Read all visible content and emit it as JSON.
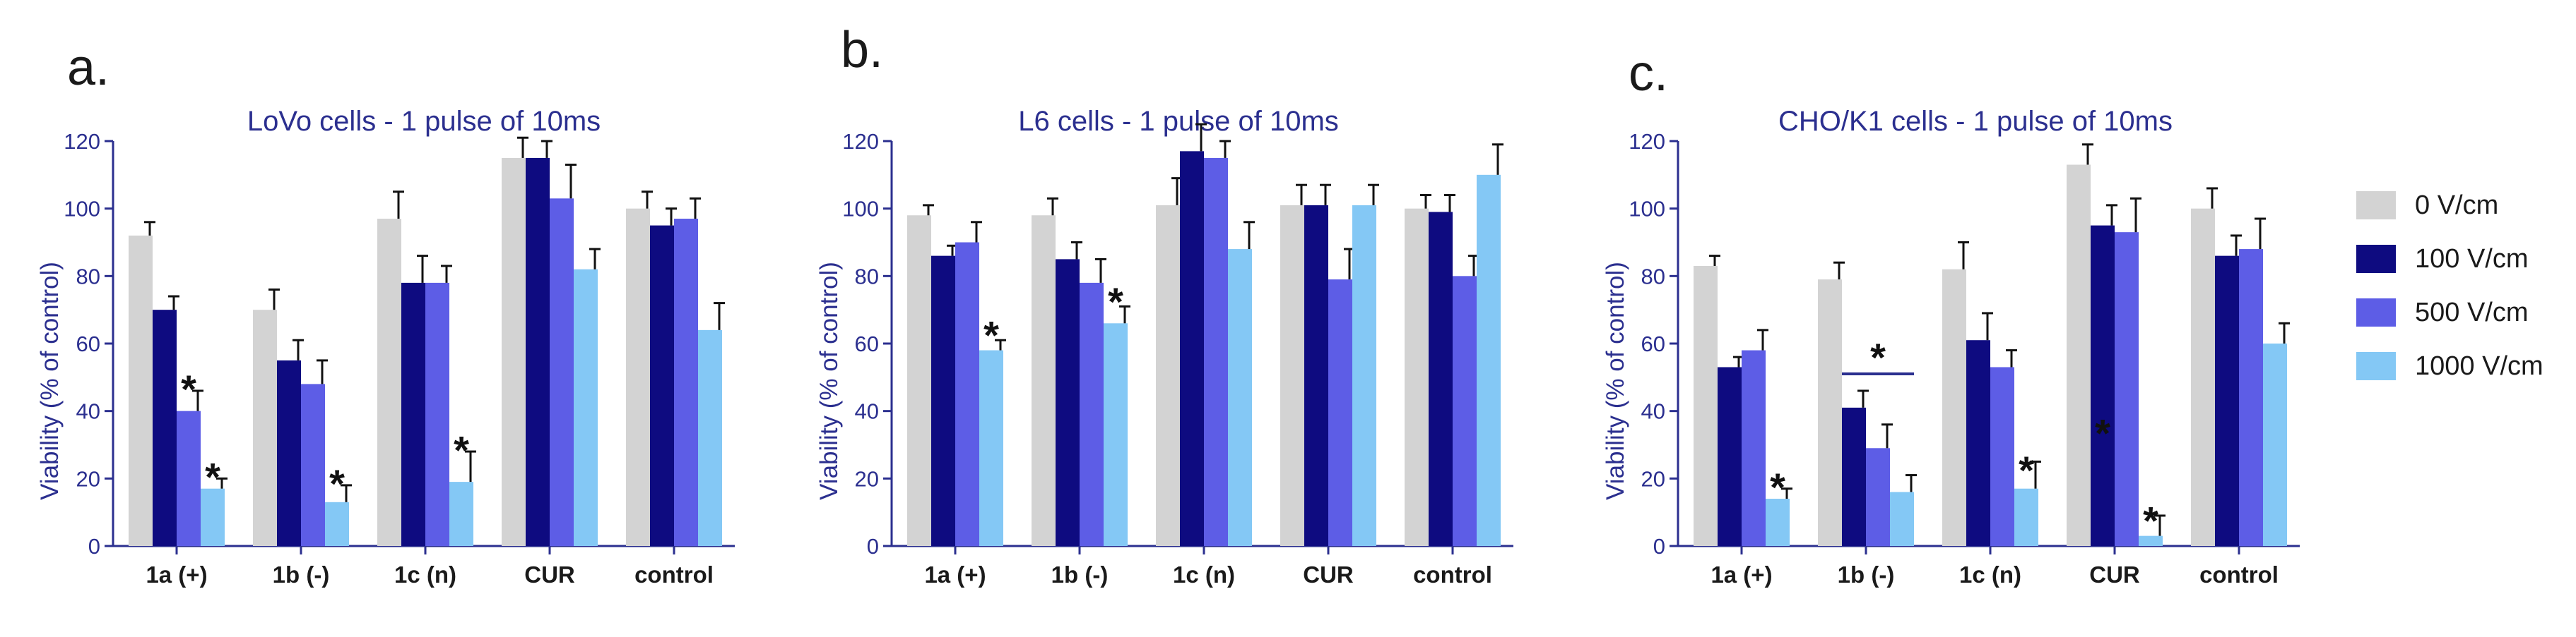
{
  "colors": {
    "title": "#2b2f8f",
    "axis": "#2b2f8f",
    "error": "#111111"
  },
  "legend": [
    {
      "label": "0 V/cm",
      "color": "#d3d3d3"
    },
    {
      "label": "100 V/cm",
      "color": "#0e0b80"
    },
    {
      "label": "500 V/cm",
      "color": "#5d5de6"
    },
    {
      "label": "1000 V/cm",
      "color": "#84c8f5"
    }
  ],
  "chart_data": [
    {
      "panel": "a.",
      "type": "bar",
      "title": "LoVo cells - 1 pulse of 10ms",
      "xlabel": "",
      "ylabel": "Viability (% of control)",
      "ylim": [
        0,
        120
      ],
      "yticks": [
        0,
        20,
        40,
        60,
        80,
        100,
        120
      ],
      "categories": [
        "1a (+)",
        "1b (-)",
        "1c (n)",
        "CUR",
        "control"
      ],
      "series": [
        {
          "name": "0 V/cm",
          "values": [
            92,
            70,
            97,
            115,
            100
          ],
          "errors": [
            4,
            6,
            8,
            6,
            5
          ]
        },
        {
          "name": "100 V/cm",
          "values": [
            70,
            55,
            78,
            115,
            95
          ],
          "errors": [
            4,
            6,
            8,
            5,
            5
          ]
        },
        {
          "name": "500 V/cm",
          "values": [
            40,
            48,
            78,
            103,
            97
          ],
          "errors": [
            6,
            7,
            5,
            10,
            6
          ]
        },
        {
          "name": "1000 V/cm",
          "values": [
            17,
            13,
            19,
            82,
            64
          ],
          "errors": [
            3,
            5,
            9,
            6,
            8
          ]
        }
      ],
      "annotations": [
        {
          "text": "*",
          "category": 0,
          "series": 2,
          "y": 47
        },
        {
          "text": "*",
          "category": 0,
          "series": 3,
          "y": 21
        },
        {
          "text": "*",
          "category": 1,
          "series": 3,
          "y": 19
        },
        {
          "text": "*",
          "category": 2,
          "series": 3,
          "y": 29
        }
      ]
    },
    {
      "panel": "b.",
      "type": "bar",
      "title": "L6 cells - 1 pulse of 10ms",
      "xlabel": "",
      "ylabel": "Viability (% of control)",
      "ylim": [
        0,
        120
      ],
      "yticks": [
        0,
        20,
        40,
        60,
        80,
        100,
        120
      ],
      "categories": [
        "1a (+)",
        "1b (-)",
        "1c (n)",
        "CUR",
        "control"
      ],
      "series": [
        {
          "name": "0 V/cm",
          "values": [
            98,
            98,
            101,
            101,
            100
          ],
          "errors": [
            3,
            5,
            8,
            6,
            4
          ]
        },
        {
          "name": "100 V/cm",
          "values": [
            86,
            85,
            117,
            101,
            99
          ],
          "errors": [
            3,
            5,
            8,
            6,
            5
          ]
        },
        {
          "name": "500 V/cm",
          "values": [
            90,
            78,
            115,
            79,
            80
          ],
          "errors": [
            6,
            7,
            5,
            9,
            6
          ]
        },
        {
          "name": "1000 V/cm",
          "values": [
            58,
            66,
            88,
            101,
            110
          ],
          "errors": [
            3,
            5,
            8,
            6,
            9
          ]
        }
      ],
      "annotations": [
        {
          "text": "*",
          "category": 0,
          "series": 3,
          "y": 63
        },
        {
          "text": "*",
          "category": 1,
          "series": 3,
          "y": 73
        }
      ]
    },
    {
      "panel": "c.",
      "type": "bar",
      "title": "CHO/K1 cells - 1 pulse of 10ms",
      "xlabel": "",
      "ylabel": "Viability (% of control)",
      "ylim": [
        0,
        120
      ],
      "yticks": [
        0,
        20,
        40,
        60,
        80,
        100,
        120
      ],
      "categories": [
        "1a (+)",
        "1b (-)",
        "1c (n)",
        "CUR",
        "control"
      ],
      "series": [
        {
          "name": "0 V/cm",
          "values": [
            83,
            79,
            82,
            113,
            100
          ],
          "errors": [
            3,
            5,
            8,
            6,
            6
          ]
        },
        {
          "name": "100 V/cm",
          "values": [
            53,
            41,
            61,
            95,
            86
          ],
          "errors": [
            3,
            5,
            8,
            6,
            6
          ]
        },
        {
          "name": "500 V/cm",
          "values": [
            58,
            29,
            53,
            93,
            88
          ],
          "errors": [
            6,
            7,
            5,
            10,
            9
          ]
        },
        {
          "name": "1000 V/cm",
          "values": [
            14,
            16,
            17,
            3,
            60
          ],
          "errors": [
            3,
            5,
            8,
            6,
            6
          ]
        }
      ],
      "annotations": [
        {
          "text": "*",
          "category": 0,
          "series": 3,
          "y": 18
        },
        {
          "text": "*",
          "category": 1,
          "series": 2,
          "y": 51,
          "bracket": [
            1,
            3
          ]
        },
        {
          "text": "*",
          "category": 2,
          "series": 3,
          "y": 23
        },
        {
          "text": "*",
          "category": 3,
          "series": 1,
          "y": 34
        },
        {
          "text": "*",
          "category": 3,
          "series": 3,
          "y": 8
        }
      ]
    }
  ]
}
